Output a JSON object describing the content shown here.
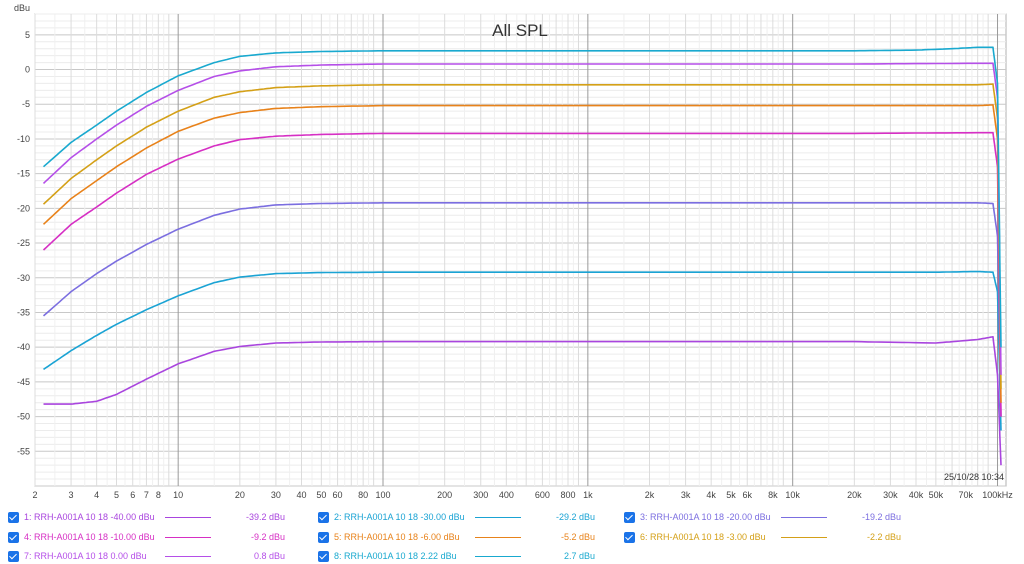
{
  "chart_data": {
    "type": "line",
    "title": "All SPL",
    "ylabel": "dBu",
    "xlabel": "",
    "x_scale": "log",
    "xlim": [
      2,
      110000
    ],
    "ylim": [
      -60,
      8
    ],
    "grid": true,
    "legend_placement": "bottom",
    "timestamp": "25/10/28 10:34",
    "x_tick_labels": [
      {
        "v": 2,
        "t": "2"
      },
      {
        "v": 3,
        "t": "3"
      },
      {
        "v": 4,
        "t": "4"
      },
      {
        "v": 5,
        "t": "5"
      },
      {
        "v": 6,
        "t": "6"
      },
      {
        "v": 7,
        "t": "7"
      },
      {
        "v": 8,
        "t": "8"
      },
      {
        "v": 10,
        "t": "10"
      },
      {
        "v": 20,
        "t": "20"
      },
      {
        "v": 30,
        "t": "30"
      },
      {
        "v": 40,
        "t": "40"
      },
      {
        "v": 50,
        "t": "50"
      },
      {
        "v": 60,
        "t": "60"
      },
      {
        "v": 80,
        "t": "80"
      },
      {
        "v": 100,
        "t": "100"
      },
      {
        "v": 200,
        "t": "200"
      },
      {
        "v": 300,
        "t": "300"
      },
      {
        "v": 400,
        "t": "400"
      },
      {
        "v": 600,
        "t": "600"
      },
      {
        "v": 800,
        "t": "800"
      },
      {
        "v": 1000,
        "t": "1k"
      },
      {
        "v": 2000,
        "t": "2k"
      },
      {
        "v": 3000,
        "t": "3k"
      },
      {
        "v": 4000,
        "t": "4k"
      },
      {
        "v": 5000,
        "t": "5k"
      },
      {
        "v": 6000,
        "t": "6k"
      },
      {
        "v": 8000,
        "t": "8k"
      },
      {
        "v": 10000,
        "t": "10k"
      },
      {
        "v": 20000,
        "t": "20k"
      },
      {
        "v": 30000,
        "t": "30k"
      },
      {
        "v": 40000,
        "t": "40k"
      },
      {
        "v": 50000,
        "t": "50k"
      },
      {
        "v": 70000,
        "t": "70k"
      },
      {
        "v": 100000,
        "t": "100kHz"
      }
    ],
    "y_ticks": [
      5,
      0,
      -5,
      -10,
      -15,
      -20,
      -25,
      -30,
      -35,
      -40,
      -45,
      -50,
      -55
    ],
    "series": [
      {
        "name": "1: RRH-A001A 10 18 -40.00 dBu",
        "legend_value": "-39.2 dBu",
        "color": "#a945de",
        "points": [
          [
            2.2,
            -48.2
          ],
          [
            3,
            -48.2
          ],
          [
            4,
            -47.8
          ],
          [
            5,
            -46.8
          ],
          [
            7,
            -44.6
          ],
          [
            10,
            -42.4
          ],
          [
            15,
            -40.6
          ],
          [
            20,
            -39.9
          ],
          [
            30,
            -39.4
          ],
          [
            50,
            -39.25
          ],
          [
            100,
            -39.2
          ],
          [
            1000,
            -39.2
          ],
          [
            20000,
            -39.2
          ],
          [
            50000,
            -39.4
          ],
          [
            80000,
            -38.9
          ],
          [
            95000,
            -38.5
          ],
          [
            100000,
            -44
          ],
          [
            104000,
            -57
          ]
        ]
      },
      {
        "name": "2: RRH-A001A 10 18 -30.00 dBu",
        "legend_value": "-29.2 dBu",
        "color": "#1aa3d4",
        "points": [
          [
            2.2,
            -43.2
          ],
          [
            3,
            -40.5
          ],
          [
            4,
            -38.3
          ],
          [
            5,
            -36.7
          ],
          [
            7,
            -34.6
          ],
          [
            10,
            -32.6
          ],
          [
            15,
            -30.7
          ],
          [
            20,
            -29.9
          ],
          [
            30,
            -29.4
          ],
          [
            50,
            -29.25
          ],
          [
            100,
            -29.2
          ],
          [
            1000,
            -29.2
          ],
          [
            20000,
            -29.2
          ],
          [
            50000,
            -29.2
          ],
          [
            80000,
            -29.1
          ],
          [
            95000,
            -29.2
          ],
          [
            100000,
            -32
          ],
          [
            104000,
            -52
          ]
        ]
      },
      {
        "name": "3: RRH-A001A 10 18 -20.00 dBu",
        "legend_value": "-19.2 dBu",
        "color": "#7b6ee0",
        "points": [
          [
            2.2,
            -35.5
          ],
          [
            3,
            -32
          ],
          [
            4,
            -29.4
          ],
          [
            5,
            -27.6
          ],
          [
            7,
            -25.2
          ],
          [
            10,
            -23
          ],
          [
            15,
            -21
          ],
          [
            20,
            -20.1
          ],
          [
            30,
            -19.5
          ],
          [
            50,
            -19.3
          ],
          [
            100,
            -19.2
          ],
          [
            1000,
            -19.2
          ],
          [
            20000,
            -19.2
          ],
          [
            80000,
            -19.2
          ],
          [
            95000,
            -19.3
          ],
          [
            100000,
            -24
          ],
          [
            104000,
            -50
          ]
        ]
      },
      {
        "name": "4: RRH-A001A 10 18 -10.00 dBu",
        "legend_value": "-9.2 dBu",
        "color": "#d62fc4",
        "points": [
          [
            2.2,
            -26
          ],
          [
            3,
            -22.3
          ],
          [
            4,
            -19.8
          ],
          [
            5,
            -17.8
          ],
          [
            7,
            -15.1
          ],
          [
            10,
            -12.9
          ],
          [
            15,
            -11
          ],
          [
            20,
            -10.1
          ],
          [
            30,
            -9.6
          ],
          [
            50,
            -9.35
          ],
          [
            100,
            -9.2
          ],
          [
            1000,
            -9.2
          ],
          [
            20000,
            -9.2
          ],
          [
            80000,
            -9.1
          ],
          [
            95000,
            -9.1
          ],
          [
            100000,
            -14
          ],
          [
            104000,
            -50
          ]
        ]
      },
      {
        "name": "5: RRH-A001A 10 18 -6.00 dBu",
        "legend_value": "-5.2 dBu",
        "color": "#e8821a",
        "points": [
          [
            2.2,
            -22.3
          ],
          [
            3,
            -18.6
          ],
          [
            4,
            -16
          ],
          [
            5,
            -14
          ],
          [
            7,
            -11.3
          ],
          [
            10,
            -8.9
          ],
          [
            15,
            -7
          ],
          [
            20,
            -6.2
          ],
          [
            30,
            -5.6
          ],
          [
            50,
            -5.35
          ],
          [
            100,
            -5.2
          ],
          [
            1000,
            -5.2
          ],
          [
            20000,
            -5.2
          ],
          [
            80000,
            -5.2
          ],
          [
            95000,
            -5.1
          ],
          [
            100000,
            -10
          ],
          [
            104000,
            -48
          ]
        ]
      },
      {
        "name": "6: RRH-A001A 10 18 -3.00 dBu",
        "legend_value": "-2.2 dBu",
        "color": "#d4a017",
        "points": [
          [
            2.2,
            -19.4
          ],
          [
            3,
            -15.7
          ],
          [
            4,
            -13
          ],
          [
            5,
            -11
          ],
          [
            7,
            -8.3
          ],
          [
            10,
            -6
          ],
          [
            15,
            -4
          ],
          [
            20,
            -3.2
          ],
          [
            30,
            -2.6
          ],
          [
            50,
            -2.35
          ],
          [
            100,
            -2.2
          ],
          [
            1000,
            -2.2
          ],
          [
            20000,
            -2.2
          ],
          [
            80000,
            -2.2
          ],
          [
            95000,
            -2.1
          ],
          [
            100000,
            -7
          ],
          [
            104000,
            -46
          ]
        ]
      },
      {
        "name": "7: RRH-A001A 10 18 0.00 dBu",
        "legend_value": "0.8 dBu",
        "color": "#b54fe8",
        "points": [
          [
            2.2,
            -16.4
          ],
          [
            3,
            -12.7
          ],
          [
            4,
            -10
          ],
          [
            5,
            -8
          ],
          [
            7,
            -5.3
          ],
          [
            10,
            -3
          ],
          [
            15,
            -1
          ],
          [
            20,
            -0.2
          ],
          [
            30,
            0.4
          ],
          [
            50,
            0.65
          ],
          [
            100,
            0.8
          ],
          [
            1000,
            0.8
          ],
          [
            20000,
            0.8
          ],
          [
            80000,
            0.9
          ],
          [
            95000,
            0.9
          ],
          [
            100000,
            -4
          ],
          [
            104000,
            -44
          ]
        ]
      },
      {
        "name": "8: RRH-A001A 10 18 2.22 dBu",
        "legend_value": "2.7 dBu",
        "color": "#19a9cf",
        "points": [
          [
            2.2,
            -14
          ],
          [
            3,
            -10.5
          ],
          [
            4,
            -8
          ],
          [
            5,
            -6
          ],
          [
            7,
            -3.3
          ],
          [
            10,
            -0.9
          ],
          [
            15,
            1
          ],
          [
            20,
            1.9
          ],
          [
            30,
            2.4
          ],
          [
            50,
            2.6
          ],
          [
            100,
            2.7
          ],
          [
            1000,
            2.7
          ],
          [
            20000,
            2.7
          ],
          [
            40000,
            2.8
          ],
          [
            60000,
            3.0
          ],
          [
            80000,
            3.2
          ],
          [
            95000,
            3.2
          ],
          [
            100000,
            -2
          ],
          [
            104000,
            -40
          ]
        ]
      }
    ]
  }
}
